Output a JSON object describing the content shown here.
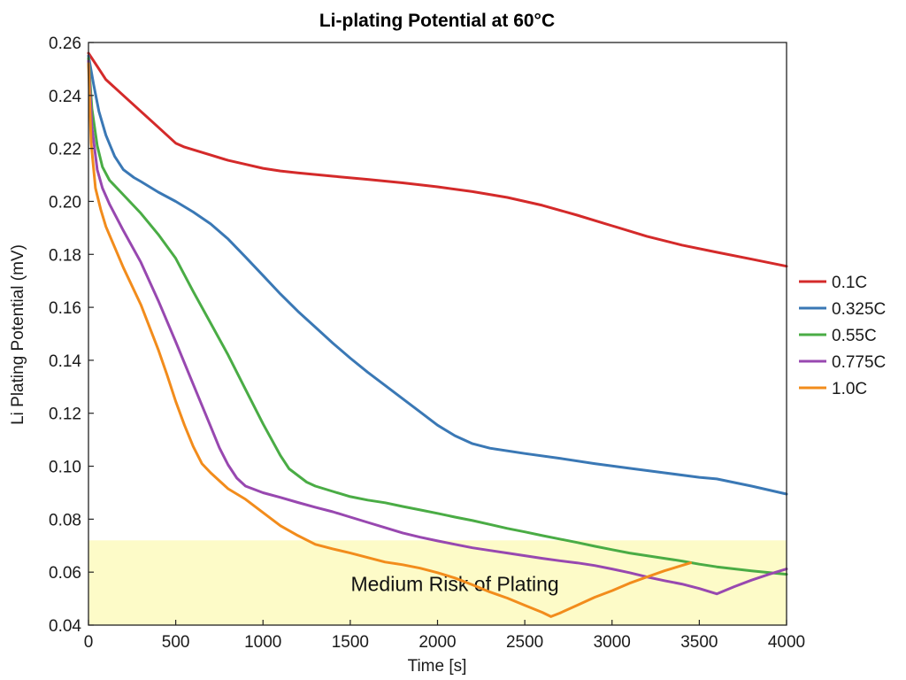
{
  "chart_data": {
    "type": "line",
    "title": "Li-plating Potential at 60°C",
    "xlabel": "Time [s]",
    "ylabel": "Li Plating Potential (mV)",
    "xlim": [
      0,
      4000
    ],
    "ylim": [
      0.04,
      0.26
    ],
    "x_ticks": [
      0,
      500,
      1000,
      1500,
      2000,
      2500,
      3000,
      3500,
      4000
    ],
    "x_tick_labels": [
      "0",
      "500",
      "1000",
      "1500",
      "2000",
      "2500",
      "3000",
      "3500",
      "4000"
    ],
    "y_ticks": [
      0.04,
      0.06,
      0.08,
      0.1,
      0.12,
      0.14,
      0.16,
      0.18,
      0.2,
      0.22,
      0.24,
      0.26
    ],
    "y_tick_labels": [
      "0.04",
      "0.06",
      "0.08",
      "0.10",
      "0.12",
      "0.14",
      "0.16",
      "0.18",
      "0.20",
      "0.22",
      "0.24",
      "0.26"
    ],
    "grid": false,
    "legend_position": "right",
    "risk_zone": {
      "label": "Medium Risk of Plating",
      "y_from": 0.04,
      "y_to": 0.072,
      "color": "#fdfbc8"
    },
    "series": [
      {
        "name": "0.1C",
        "color": "#d42a2a",
        "x": [
          0,
          50,
          100,
          200,
          300,
          400,
          500,
          550,
          600,
          700,
          800,
          900,
          1000,
          1100,
          1200,
          1400,
          1600,
          1800,
          2000,
          2200,
          2400,
          2600,
          2800,
          3000,
          3200,
          3400,
          3600,
          3800,
          4000
        ],
        "y": [
          0.256,
          0.251,
          0.246,
          0.24,
          0.234,
          0.228,
          0.222,
          0.2205,
          0.2195,
          0.2175,
          0.2155,
          0.214,
          0.2125,
          0.2115,
          0.2108,
          0.2095,
          0.2083,
          0.207,
          0.2055,
          0.2037,
          0.2015,
          0.1985,
          0.1948,
          0.1908,
          0.1868,
          0.1835,
          0.1808,
          0.1782,
          0.1755
        ]
      },
      {
        "name": "0.325C",
        "color": "#3a78b5",
        "x": [
          0,
          30,
          60,
          100,
          150,
          200,
          260,
          300,
          400,
          500,
          600,
          700,
          800,
          900,
          1000,
          1100,
          1200,
          1300,
          1400,
          1500,
          1600,
          1700,
          1800,
          1900,
          2000,
          2100,
          2200,
          2300,
          2500,
          2700,
          2900,
          3100,
          3300,
          3500,
          3600,
          3800,
          4000
        ],
        "y": [
          0.255,
          0.244,
          0.234,
          0.225,
          0.217,
          0.212,
          0.209,
          0.2075,
          0.2035,
          0.2,
          0.196,
          0.1915,
          0.1858,
          0.179,
          0.172,
          0.165,
          0.1585,
          0.1525,
          0.1465,
          0.1408,
          0.1355,
          0.1305,
          0.1255,
          0.1205,
          0.1155,
          0.1115,
          0.1085,
          0.1068,
          0.1048,
          0.103,
          0.101,
          0.0992,
          0.0975,
          0.0958,
          0.0952,
          0.0925,
          0.0895
        ]
      },
      {
        "name": "0.55C",
        "color": "#4aac45",
        "x": [
          0,
          20,
          50,
          80,
          120,
          200,
          300,
          400,
          500,
          600,
          700,
          800,
          900,
          1000,
          1100,
          1150,
          1200,
          1250,
          1300,
          1400,
          1500,
          1600,
          1700,
          1800,
          1900,
          2000,
          2100,
          2200,
          2300,
          2400,
          2500,
          2600,
          2700,
          2800,
          2900,
          3000,
          3100,
          3200,
          3300,
          3400,
          3500,
          3600,
          3800,
          4000
        ],
        "y": [
          0.254,
          0.235,
          0.221,
          0.213,
          0.208,
          0.2025,
          0.1955,
          0.1875,
          0.1785,
          0.166,
          0.154,
          0.142,
          0.129,
          0.116,
          0.104,
          0.099,
          0.0965,
          0.094,
          0.0925,
          0.0905,
          0.0885,
          0.0872,
          0.0862,
          0.0848,
          0.0835,
          0.0822,
          0.0808,
          0.0795,
          0.078,
          0.0765,
          0.0752,
          0.0738,
          0.0725,
          0.0712,
          0.0698,
          0.0685,
          0.0672,
          0.0662,
          0.0652,
          0.0642,
          0.063,
          0.062,
          0.0605,
          0.0592
        ]
      },
      {
        "name": "0.775C",
        "color": "#9848b0",
        "x": [
          0,
          20,
          50,
          80,
          120,
          200,
          300,
          400,
          500,
          600,
          700,
          750,
          800,
          850,
          900,
          1000,
          1100,
          1200,
          1300,
          1400,
          1500,
          1600,
          1700,
          1800,
          1900,
          2000,
          2100,
          2200,
          2300,
          2400,
          2500,
          2600,
          2700,
          2800,
          2900,
          3000,
          3100,
          3200,
          3300,
          3400,
          3500,
          3600,
          3700,
          3800,
          3900,
          4000
        ],
        "y": [
          0.253,
          0.228,
          0.212,
          0.205,
          0.199,
          0.189,
          0.177,
          0.1625,
          0.147,
          0.131,
          0.115,
          0.107,
          0.1005,
          0.0955,
          0.0925,
          0.09,
          0.0882,
          0.0863,
          0.0845,
          0.0828,
          0.0808,
          0.0788,
          0.0768,
          0.0748,
          0.0732,
          0.0718,
          0.0705,
          0.0692,
          0.0682,
          0.0672,
          0.0662,
          0.0652,
          0.0643,
          0.0635,
          0.0625,
          0.0612,
          0.0598,
          0.0582,
          0.0568,
          0.0555,
          0.0538,
          0.0518,
          0.0545,
          0.057,
          0.0592,
          0.0612
        ]
      },
      {
        "name": "1.0C",
        "color": "#f28c1c",
        "x": [
          0,
          15,
          40,
          70,
          100,
          200,
          300,
          400,
          450,
          500,
          550,
          600,
          650,
          700,
          800,
          900,
          1000,
          1100,
          1200,
          1300,
          1400,
          1500,
          1600,
          1700,
          1800,
          1900,
          2000,
          2100,
          2200,
          2300,
          2400,
          2500,
          2600,
          2650,
          2700,
          2800,
          2900,
          3000,
          3100,
          3200,
          3300,
          3400,
          3450
        ],
        "y": [
          0.252,
          0.222,
          0.205,
          0.197,
          0.1905,
          0.175,
          0.161,
          0.144,
          0.1345,
          0.1245,
          0.1155,
          0.1075,
          0.101,
          0.0975,
          0.0915,
          0.0875,
          0.0825,
          0.0775,
          0.0738,
          0.0705,
          0.0688,
          0.0672,
          0.0655,
          0.0638,
          0.0628,
          0.0615,
          0.0598,
          0.0578,
          0.0552,
          0.0525,
          0.0502,
          0.0475,
          0.0448,
          0.0432,
          0.0445,
          0.0475,
          0.0505,
          0.053,
          0.0558,
          0.0582,
          0.0605,
          0.0625,
          0.0635
        ]
      }
    ]
  }
}
